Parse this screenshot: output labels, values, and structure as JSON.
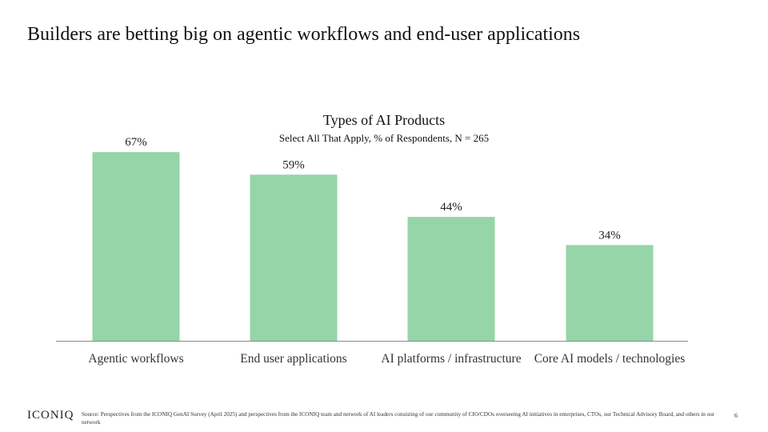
{
  "title": "Builders are betting big on agentic workflows and end-user applications",
  "chart_data": {
    "type": "bar",
    "title": "Types of AI Products",
    "subtitle": "Select All That Apply, % of Respondents, N = 265",
    "categories": [
      "Agentic workflows",
      "End user applications",
      "AI platforms / infrastructure",
      "Core AI models / technologies"
    ],
    "values": [
      67,
      59,
      44,
      34
    ],
    "value_labels": [
      "67%",
      "59%",
      "44%",
      "34%"
    ],
    "xlabel": "",
    "ylabel": "",
    "ylim": [
      0,
      100
    ],
    "grid": false,
    "legend": "none",
    "bar_color": "#95d5a8",
    "axis_color": "#8a8a8a"
  },
  "footer": {
    "logo": "ICONIQ",
    "source": "Source: Perspectives from the ICONIQ GenAI Survey (April 2025) and perspectives from the ICONIQ team and network of AI leaders consisting of our community of CIO/CDOs overseeing AI initiatives in enterprises, CTOs, our Technical Advisory Board, and others in our network",
    "page_number": "6"
  }
}
